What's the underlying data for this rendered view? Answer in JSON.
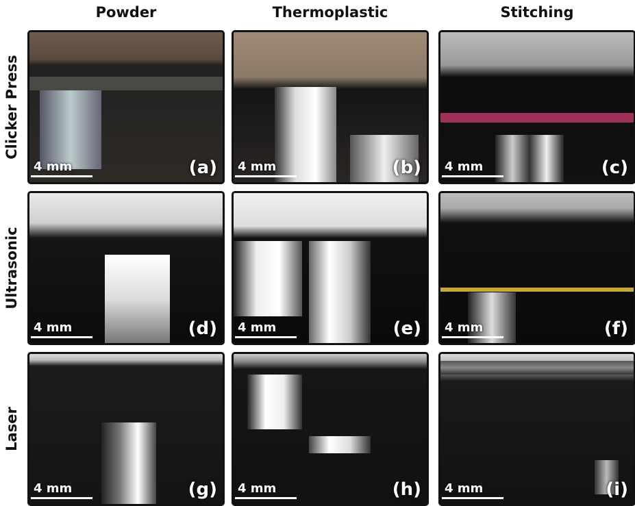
{
  "columns": [
    "Powder",
    "Thermoplastic",
    "Stitching"
  ],
  "rows": [
    "Clicker Press",
    "Ultrasonic",
    "Laser"
  ],
  "panels": [
    [
      {
        "scale": "4 mm",
        "label": "(a)"
      },
      {
        "scale": "4 mm",
        "label": "(b)"
      },
      {
        "scale": "4 mm",
        "label": "(c)"
      }
    ],
    [
      {
        "scale": "4 mm",
        "label": "(d)"
      },
      {
        "scale": "4 mm",
        "label": "(e)"
      },
      {
        "scale": "4 mm",
        "label": "(f)"
      }
    ],
    [
      {
        "scale": "4 mm",
        "label": "(g)"
      },
      {
        "scale": "4 mm",
        "label": "(h)"
      },
      {
        "scale": "4 mm",
        "label": "(i)"
      }
    ]
  ]
}
